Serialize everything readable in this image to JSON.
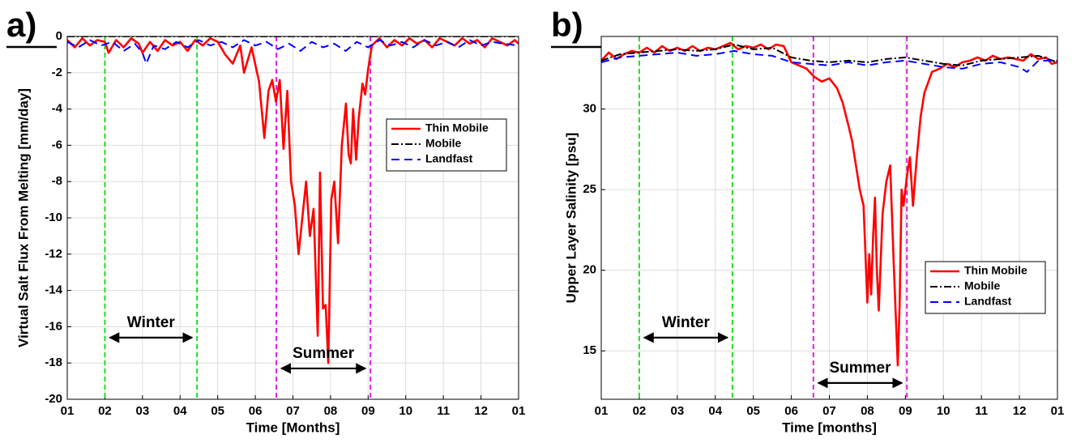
{
  "chart_data": [
    {
      "type": "line",
      "panel_label": "a)",
      "x_label": "Time [Months]",
      "y_label": "Virtual Salt Flux From Melting [mm/day]",
      "xlim": [
        0,
        12
      ],
      "ylim": [
        -20,
        0
      ],
      "xticks": [
        {
          "value": 0,
          "label": "01"
        },
        {
          "value": 1,
          "label": "02"
        },
        {
          "value": 2,
          "label": "03"
        },
        {
          "value": 3,
          "label": "04"
        },
        {
          "value": 4,
          "label": "05"
        },
        {
          "value": 5,
          "label": "06"
        },
        {
          "value": 6,
          "label": "07"
        },
        {
          "value": 7,
          "label": "08"
        },
        {
          "value": 8,
          "label": "09"
        },
        {
          "value": 9,
          "label": "10"
        },
        {
          "value": 10,
          "label": "11"
        },
        {
          "value": 11,
          "label": "12"
        },
        {
          "value": 12,
          "label": "01"
        }
      ],
      "yticks": [
        -20,
        -18,
        -16,
        -14,
        -12,
        -10,
        -8,
        -6,
        -4,
        -2,
        0
      ],
      "grid": true,
      "legend": "upper right",
      "vlines": [
        {
          "x": 1.0,
          "color": "#22dd22"
        },
        {
          "x": 3.45,
          "color": "#22dd22"
        },
        {
          "x": 5.56,
          "color": "#e020e0"
        },
        {
          "x": 8.06,
          "color": "#e020e0"
        }
      ],
      "annotations": [
        {
          "text": "Winter"
        },
        {
          "text": "Summer"
        }
      ],
      "series": [
        {
          "name": "Thin Mobile",
          "color": "#ff0000",
          "style": "solid",
          "x": [
            0,
            0.2,
            0.4,
            0.6,
            0.8,
            1.0,
            1.1,
            1.3,
            1.5,
            1.7,
            1.9,
            2.0,
            2.2,
            2.4,
            2.6,
            2.8,
            3.0,
            3.2,
            3.4,
            3.6,
            3.8,
            4.0,
            4.2,
            4.4,
            4.6,
            4.7,
            4.9,
            5.1,
            5.24,
            5.35,
            5.45,
            5.55,
            5.65,
            5.75,
            5.85,
            5.95,
            6.05,
            6.15,
            6.25,
            6.35,
            6.45,
            6.55,
            6.66,
            6.72,
            6.8,
            6.87,
            6.94,
            7.02,
            7.1,
            7.2,
            7.3,
            7.41,
            7.48,
            7.54,
            7.6,
            7.68,
            7.75,
            7.85,
            7.92,
            8.0,
            8.1,
            8.3,
            8.5,
            8.7,
            8.9,
            9.1,
            9.3,
            9.5,
            9.7,
            9.9,
            10.1,
            10.3,
            10.5,
            10.7,
            10.9,
            11.1,
            11.3,
            11.5,
            11.7,
            11.9,
            12.0
          ],
          "values": [
            -0.2,
            -0.6,
            -0.1,
            -0.5,
            -0.2,
            -0.3,
            -0.9,
            -0.2,
            -0.6,
            -0.1,
            -0.4,
            -0.9,
            -0.3,
            -0.8,
            -0.2,
            -0.5,
            -0.3,
            -0.8,
            -0.2,
            -0.5,
            -0.1,
            -0.3,
            -1.0,
            -1.5,
            -0.5,
            -2.0,
            -0.6,
            -2.5,
            -5.6,
            -3.0,
            -2.4,
            -3.6,
            -2.4,
            -6.2,
            -3.0,
            -8.0,
            -9.3,
            -12.0,
            -10.0,
            -8.0,
            -11.0,
            -9.5,
            -16.5,
            -7.5,
            -15.0,
            -14.8,
            -18.0,
            -9.0,
            -8.0,
            -11.4,
            -6.0,
            -3.7,
            -6.5,
            -7.0,
            -4.0,
            -6.8,
            -4.5,
            -2.6,
            -3.2,
            -1.8,
            -0.5,
            -0.1,
            -0.6,
            -0.2,
            -0.5,
            -0.1,
            -0.4,
            -0.2,
            -0.6,
            -0.1,
            -0.3,
            -0.5,
            -0.1,
            -0.4,
            -0.2,
            -0.6,
            -0.1,
            -0.3,
            -0.5,
            -0.2,
            -0.4
          ]
        },
        {
          "name": "Mobile",
          "color": "#000000",
          "style": "dashdot",
          "x": [
            0,
            3,
            6,
            9,
            12
          ],
          "values": [
            0,
            0,
            0,
            0,
            0
          ]
        },
        {
          "name": "Landfast",
          "color": "#0000ff",
          "style": "dashed",
          "x": [
            0,
            0.3,
            0.6,
            0.9,
            1.2,
            1.5,
            1.8,
            2.0,
            2.1,
            2.3,
            2.6,
            2.9,
            3.2,
            3.5,
            3.8,
            4.1,
            4.4,
            4.7,
            5.0,
            5.3,
            5.6,
            5.9,
            6.2,
            6.5,
            6.8,
            7.1,
            7.4,
            7.7,
            8.0,
            8.3,
            8.6,
            8.9,
            9.2,
            9.5,
            9.8,
            10.1,
            10.4,
            10.7,
            11.0,
            11.3,
            11.6,
            12.0
          ],
          "values": [
            -0.3,
            -0.6,
            -0.2,
            -0.5,
            -0.3,
            -0.8,
            -0.4,
            -0.9,
            -1.5,
            -0.5,
            -0.7,
            -0.3,
            -0.6,
            -0.2,
            -0.5,
            -0.3,
            -0.6,
            -0.2,
            -0.5,
            -0.3,
            -0.7,
            -0.4,
            -0.8,
            -0.3,
            -0.6,
            -0.4,
            -0.8,
            -0.3,
            -0.6,
            -0.2,
            -0.5,
            -0.3,
            -0.6,
            -0.2,
            -0.5,
            -0.3,
            -0.6,
            -0.2,
            -0.5,
            -0.3,
            -0.4,
            -0.5
          ]
        }
      ]
    },
    {
      "type": "line",
      "panel_label": "b)",
      "x_label": "Time [months]",
      "y_label": "Upper Layer Salinity [psu]",
      "xlim": [
        0,
        12
      ],
      "ylim": [
        12,
        34.5
      ],
      "xticks": [
        {
          "value": 0,
          "label": "01"
        },
        {
          "value": 1,
          "label": "02"
        },
        {
          "value": 2,
          "label": "03"
        },
        {
          "value": 3,
          "label": "04"
        },
        {
          "value": 4,
          "label": "05"
        },
        {
          "value": 5,
          "label": "06"
        },
        {
          "value": 6,
          "label": "07"
        },
        {
          "value": 7,
          "label": "08"
        },
        {
          "value": 8,
          "label": "09"
        },
        {
          "value": 9,
          "label": "10"
        },
        {
          "value": 10,
          "label": "11"
        },
        {
          "value": 11,
          "label": "12"
        },
        {
          "value": 12,
          "label": "01"
        }
      ],
      "yticks": [
        15,
        20,
        25,
        30
      ],
      "grid": true,
      "legend": "lower right",
      "vlines": [
        {
          "x": 1.0,
          "color": "#22dd22"
        },
        {
          "x": 3.45,
          "color": "#22dd22"
        },
        {
          "x": 5.58,
          "color": "#e020e0"
        },
        {
          "x": 8.04,
          "color": "#e020e0"
        }
      ],
      "annotations": [
        {
          "text": "Winter"
        },
        {
          "text": "Summer"
        }
      ],
      "series": [
        {
          "name": "Thin Mobile",
          "color": "#ff0000",
          "style": "solid",
          "x": [
            0,
            0.2,
            0.4,
            0.6,
            0.8,
            1.0,
            1.2,
            1.4,
            1.6,
            1.8,
            2.0,
            2.2,
            2.4,
            2.6,
            2.8,
            3.0,
            3.2,
            3.4,
            3.6,
            3.8,
            4.0,
            4.2,
            4.4,
            4.6,
            4.8,
            5.0,
            5.2,
            5.4,
            5.6,
            5.8,
            6.0,
            6.2,
            6.35,
            6.5,
            6.6,
            6.7,
            6.8,
            6.9,
            7.0,
            7.05,
            7.1,
            7.15,
            7.2,
            7.25,
            7.3,
            7.4,
            7.5,
            7.6,
            7.7,
            7.8,
            7.85,
            7.9,
            7.95,
            8.05,
            8.12,
            8.2,
            8.3,
            8.4,
            8.5,
            8.7,
            8.9,
            9.1,
            9.3,
            9.5,
            9.7,
            9.9,
            10.1,
            10.3,
            10.5,
            10.7,
            10.9,
            11.1,
            11.3,
            11.5,
            11.7,
            11.85,
            12.0
          ],
          "values": [
            33.0,
            33.5,
            33.1,
            33.4,
            33.6,
            33.5,
            33.8,
            33.5,
            33.9,
            33.6,
            33.8,
            33.6,
            33.9,
            33.6,
            33.8,
            33.7,
            33.9,
            34.1,
            33.7,
            33.9,
            33.8,
            34.0,
            33.7,
            34.0,
            33.9,
            32.9,
            32.7,
            32.5,
            32.0,
            31.7,
            31.9,
            31.3,
            30.4,
            29.0,
            28.0,
            26.5,
            25.0,
            24.0,
            18.0,
            21.0,
            18.5,
            22.0,
            24.5,
            20.0,
            17.5,
            23.5,
            25.5,
            26.5,
            20.0,
            14.1,
            18.0,
            25.0,
            24.0,
            26.0,
            27.0,
            24.0,
            27.0,
            29.5,
            31.0,
            32.3,
            32.5,
            32.8,
            32.6,
            32.9,
            33.0,
            33.2,
            33.0,
            33.3,
            33.1,
            33.2,
            33.1,
            33.0,
            33.4,
            33.1,
            33.2,
            32.8,
            32.9
          ]
        },
        {
          "name": "Mobile",
          "color": "#000000",
          "style": "dashdot",
          "x": [
            0,
            0.5,
            1,
            1.5,
            2,
            2.5,
            3,
            3.5,
            4,
            4.5,
            5,
            5.5,
            6,
            6.5,
            7,
            7.5,
            8,
            8.5,
            9,
            9.5,
            10,
            10.5,
            11,
            11.5,
            12
          ],
          "values": [
            33.0,
            33.4,
            33.5,
            33.6,
            33.7,
            33.6,
            33.7,
            34.0,
            33.7,
            33.8,
            33.2,
            33.0,
            32.9,
            33.0,
            32.9,
            33.1,
            33.2,
            33.0,
            32.8,
            32.7,
            33.0,
            33.1,
            33.2,
            33.3,
            32.9
          ]
        },
        {
          "name": "Landfast",
          "color": "#0000ff",
          "style": "dashed",
          "x": [
            0,
            0.5,
            1,
            1.5,
            2,
            2.5,
            3,
            3.5,
            4,
            4.5,
            5,
            5.5,
            6,
            6.5,
            7,
            7.5,
            8,
            8.5,
            9,
            9.5,
            10,
            10.5,
            11,
            11.2,
            11.5,
            12
          ],
          "values": [
            32.9,
            33.2,
            33.3,
            33.4,
            33.5,
            33.3,
            33.4,
            33.6,
            33.4,
            33.3,
            32.9,
            32.8,
            32.7,
            32.9,
            32.7,
            32.9,
            33.0,
            32.8,
            32.6,
            32.5,
            32.8,
            32.9,
            32.6,
            32.3,
            33.0,
            33.0
          ]
        }
      ]
    }
  ]
}
